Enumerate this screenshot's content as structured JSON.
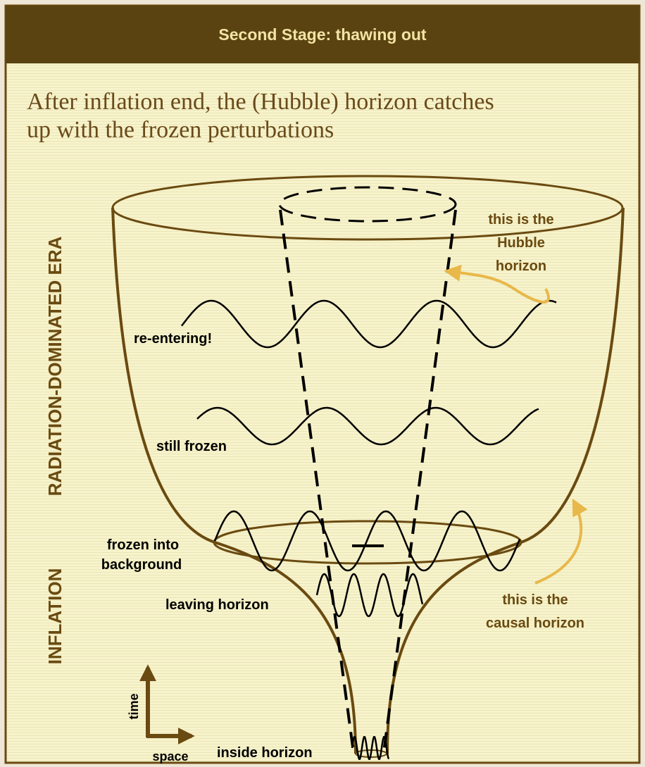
{
  "header": {
    "title": "Second Stage:  thawing out"
  },
  "intro": {
    "lines": [
      "After inflation end, the (Hubble) horizon catches",
      "up with the frozen perturbations"
    ]
  },
  "eras": {
    "radiation": "RADIATION-DOMINATED ERA",
    "inflation": "INFLATION"
  },
  "labels": {
    "re_entering": "re-entering!",
    "still_frozen": "still frozen",
    "frozen_into_background": [
      "frozen into",
      "background"
    ],
    "leaving_horizon": "leaving horizon",
    "inside_horizon": "inside horizon",
    "hubble_horizon": [
      "this is the",
      "Hubble",
      "horizon"
    ],
    "causal_horizon": [
      "this is the",
      "causal horizon"
    ]
  },
  "axes": {
    "time": "time",
    "space": "space"
  }
}
